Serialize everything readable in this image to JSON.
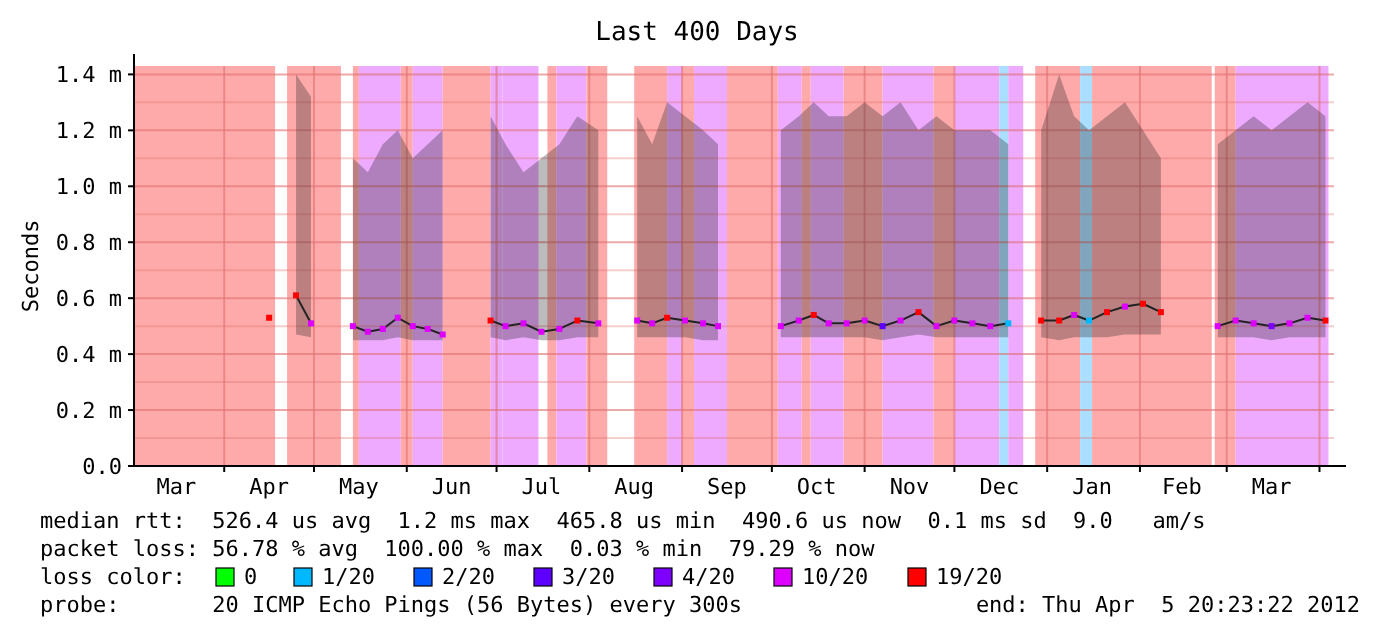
{
  "chart_data": {
    "type": "line",
    "title": "Last 400 Days",
    "ylabel": "Seconds",
    "legend": "bottom",
    "legend_title": "loss color:",
    "grid": true,
    "xlim": [
      "2011-03-01T20:23",
      "2012-04-05T20:23"
    ],
    "xticks": [
      {
        "value": "2011-03-16",
        "label": "Mar"
      },
      {
        "value": "2011-04-01",
        "label": null
      },
      {
        "value": "2011-04-16",
        "label": "Apr"
      },
      {
        "value": "2011-05-01",
        "label": null
      },
      {
        "value": "2011-05-16",
        "label": "May"
      },
      {
        "value": "2011-06-01",
        "label": null
      },
      {
        "value": "2011-06-16",
        "label": "Jun"
      },
      {
        "value": "2011-07-01",
        "label": null
      },
      {
        "value": "2011-07-16",
        "label": "Jul"
      },
      {
        "value": "2011-08-01",
        "label": null
      },
      {
        "value": "2011-08-16",
        "label": "Aug"
      },
      {
        "value": "2011-09-01",
        "label": null
      },
      {
        "value": "2011-09-16",
        "label": "Sep"
      },
      {
        "value": "2011-10-01",
        "label": null
      },
      {
        "value": "2011-10-16",
        "label": "Oct"
      },
      {
        "value": "2011-11-01",
        "label": null
      },
      {
        "value": "2011-11-16",
        "label": "Nov"
      },
      {
        "value": "2011-12-01",
        "label": null
      },
      {
        "value": "2011-12-16",
        "label": "Dec"
      },
      {
        "value": "2012-01-01",
        "label": null
      },
      {
        "value": "2012-01-16",
        "label": "Jan"
      },
      {
        "value": "2012-02-01",
        "label": null
      },
      {
        "value": "2012-02-15",
        "label": "Feb"
      },
      {
        "value": "2012-03-01",
        "label": null
      },
      {
        "value": "2012-03-16",
        "label": "Mar"
      },
      {
        "value": "2012-04-01",
        "label": null
      }
    ],
    "ylim": [
      0,
      1.43
    ],
    "yticks": [
      {
        "value": 0,
        "label": "0.0"
      },
      {
        "value": 0.1,
        "label": null
      },
      {
        "value": 0.2,
        "label": "0.2 m"
      },
      {
        "value": 0.3,
        "label": null
      },
      {
        "value": 0.4,
        "label": "0.4 m"
      },
      {
        "value": 0.5,
        "label": null
      },
      {
        "value": 0.6,
        "label": "0.6 m"
      },
      {
        "value": 0.7,
        "label": null
      },
      {
        "value": 0.8,
        "label": "0.8 m"
      },
      {
        "value": 0.9,
        "label": null
      },
      {
        "value": 1.0,
        "label": "1.0 m"
      },
      {
        "value": 1.1,
        "label": null
      },
      {
        "value": 1.2,
        "label": "1.2 m"
      },
      {
        "value": 1.3,
        "label": null
      },
      {
        "value": 1.4,
        "label": "1.4 m"
      }
    ],
    "bands": [
      {
        "axis": "x",
        "from": "2011-03-01T20:23",
        "to": "2011-04-18",
        "color": "#ffaaaa"
      },
      {
        "axis": "x",
        "from": "2011-04-22",
        "to": "2011-05-10",
        "color": "#ffaaaa"
      },
      {
        "axis": "x",
        "from": "2011-05-14",
        "to": "2011-05-16",
        "color": "#ffaaaa"
      },
      {
        "axis": "x",
        "from": "2011-05-16",
        "to": "2011-05-30",
        "color": "#eeaaff"
      },
      {
        "axis": "x",
        "from": "2011-05-30",
        "to": "2011-06-03",
        "color": "#ffaaaa"
      },
      {
        "axis": "x",
        "from": "2011-06-03",
        "to": "2011-06-13",
        "color": "#eeaaff"
      },
      {
        "axis": "x",
        "from": "2011-06-13",
        "to": "2011-06-29",
        "color": "#ffaaaa"
      },
      {
        "axis": "x",
        "from": "2011-06-29",
        "to": "2011-07-03",
        "color": "#eeaaff"
      },
      {
        "axis": "x",
        "from": "2011-07-03",
        "to": "2011-07-15",
        "color": "#eeaaff"
      },
      {
        "axis": "x",
        "from": "2011-07-18",
        "to": "2011-07-21",
        "color": "#ffaaaa"
      },
      {
        "axis": "x",
        "from": "2011-07-21",
        "to": "2011-07-31",
        "color": "#eeaaff"
      },
      {
        "axis": "x",
        "from": "2011-07-31",
        "to": "2011-08-07",
        "color": "#ffaaaa"
      },
      {
        "axis": "x",
        "from": "2011-08-16",
        "to": "2011-08-27",
        "color": "#ffaaaa"
      },
      {
        "axis": "x",
        "from": "2011-08-27",
        "to": "2011-09-01",
        "color": "#eeaaff"
      },
      {
        "axis": "x",
        "from": "2011-09-01",
        "to": "2011-09-05",
        "color": "#ffaaaa"
      },
      {
        "axis": "x",
        "from": "2011-09-05",
        "to": "2011-09-16",
        "color": "#eeaaff"
      },
      {
        "axis": "x",
        "from": "2011-09-16",
        "to": "2011-10-03",
        "color": "#ffaaaa"
      },
      {
        "axis": "x",
        "from": "2011-10-03",
        "to": "2011-10-11",
        "color": "#eeaaff"
      },
      {
        "axis": "x",
        "from": "2011-10-11",
        "to": "2011-10-14",
        "color": "#ffaaaa"
      },
      {
        "axis": "x",
        "from": "2011-10-14",
        "to": "2011-10-25",
        "color": "#eeaaff"
      },
      {
        "axis": "x",
        "from": "2011-10-25",
        "to": "2011-11-07",
        "color": "#ffaaaa"
      },
      {
        "axis": "x",
        "from": "2011-11-07",
        "to": "2011-11-24",
        "color": "#eeaaff"
      },
      {
        "axis": "x",
        "from": "2011-11-24",
        "to": "2011-12-01",
        "color": "#ffaaaa"
      },
      {
        "axis": "x",
        "from": "2011-12-01",
        "to": "2011-12-16",
        "color": "#eeaaff"
      },
      {
        "axis": "x",
        "from": "2011-12-16",
        "to": "2011-12-19",
        "color": "#aadfff"
      },
      {
        "axis": "x",
        "from": "2011-12-19",
        "to": "2011-12-24",
        "color": "#eeaaff"
      },
      {
        "axis": "x",
        "from": "2011-12-28",
        "to": "2012-01-12",
        "color": "#ffaaaa"
      },
      {
        "axis": "x",
        "from": "2012-01-12",
        "to": "2012-01-16",
        "color": "#aadfff"
      },
      {
        "axis": "x",
        "from": "2012-01-16",
        "to": "2012-02-25",
        "color": "#ffaaaa"
      },
      {
        "axis": "x",
        "from": "2012-02-26",
        "to": "2012-03-04",
        "color": "#ffaaaa"
      },
      {
        "axis": "x",
        "from": "2012-03-04",
        "to": "2012-04-04",
        "color": "#eeaaff"
      }
    ],
    "x": [
      "2011-04-16",
      "2011-04-20",
      "2011-04-25",
      "2011-04-30",
      "2011-05-05",
      "2011-05-14",
      "2011-05-19",
      "2011-05-24",
      "2011-05-29",
      "2011-06-03",
      "2011-06-08",
      "2011-06-13",
      "2011-06-20",
      "2011-06-29",
      "2011-07-04",
      "2011-07-10",
      "2011-07-16",
      "2011-07-22",
      "2011-07-28",
      "2011-08-04",
      "2011-08-10",
      "2011-08-17",
      "2011-08-22",
      "2011-08-27",
      "2011-09-02",
      "2011-09-08",
      "2011-09-13",
      "2011-09-24",
      "2011-10-04",
      "2011-10-10",
      "2011-10-15",
      "2011-10-20",
      "2011-10-26",
      "2011-11-01",
      "2011-11-07",
      "2011-11-13",
      "2011-11-19",
      "2011-11-25",
      "2011-12-01",
      "2011-12-07",
      "2011-12-13",
      "2011-12-19",
      "2011-12-24",
      "2011-12-30",
      "2012-01-05",
      "2012-01-10",
      "2012-01-15",
      "2012-01-21",
      "2012-01-27",
      "2012-02-02",
      "2012-02-08",
      "2012-02-14",
      "2012-02-27",
      "2012-03-04",
      "2012-03-10",
      "2012-03-16",
      "2012-03-22",
      "2012-03-28",
      "2012-04-03"
    ],
    "series": [
      {
        "color": "#222222",
        "values": [
          null,
          null,
          0.61,
          0.51,
          null,
          0.5,
          0.48,
          0.49,
          0.53,
          0.5,
          0.49,
          0.47,
          null,
          0.52,
          0.5,
          0.51,
          0.48,
          0.49,
          0.52,
          0.51,
          null,
          0.52,
          0.51,
          0.53,
          0.52,
          0.51,
          0.5,
          null,
          0.5,
          0.52,
          0.54,
          0.51,
          0.51,
          0.52,
          0.5,
          0.52,
          0.55,
          0.5,
          0.52,
          0.51,
          0.5,
          0.51,
          null,
          0.52,
          0.52,
          0.54,
          0.52,
          0.55,
          0.57,
          0.58,
          0.55,
          null,
          0.5,
          0.52,
          0.51,
          0.5,
          0.51,
          0.53,
          0.52
        ],
        "lower": [
          null,
          null,
          0.47,
          0.46,
          null,
          0.45,
          0.45,
          0.45,
          0.46,
          0.45,
          0.45,
          0.45,
          null,
          0.46,
          0.45,
          0.46,
          0.45,
          0.45,
          0.46,
          0.46,
          null,
          0.46,
          0.46,
          0.46,
          0.46,
          0.45,
          0.45,
          null,
          0.46,
          0.46,
          0.46,
          0.46,
          0.46,
          0.46,
          0.45,
          0.46,
          0.47,
          0.46,
          0.46,
          0.46,
          0.46,
          0.46,
          null,
          0.46,
          0.45,
          0.46,
          0.46,
          0.46,
          0.47,
          0.47,
          0.47,
          null,
          0.46,
          0.46,
          0.46,
          0.45,
          0.46,
          0.46,
          0.46
        ],
        "upper": [
          null,
          null,
          1.4,
          1.32,
          null,
          1.1,
          1.05,
          1.15,
          1.2,
          1.1,
          1.15,
          1.2,
          null,
          1.25,
          1.15,
          1.05,
          1.1,
          1.15,
          1.25,
          1.2,
          null,
          1.25,
          1.15,
          1.3,
          1.25,
          1.2,
          1.15,
          null,
          1.2,
          1.25,
          1.3,
          1.25,
          1.25,
          1.3,
          1.25,
          1.3,
          1.2,
          1.25,
          1.2,
          1.2,
          1.2,
          1.15,
          null,
          1.2,
          1.4,
          1.25,
          1.2,
          1.25,
          1.3,
          1.2,
          1.1,
          null,
          1.15,
          1.2,
          1.25,
          1.2,
          1.25,
          1.3,
          1.25
        ]
      },
      {
        "name": "0",
        "type": "scatter",
        "marker": "square",
        "color": "#00ff00",
        "values": [
          null,
          null,
          null,
          null,
          null,
          null,
          null,
          null,
          null,
          null,
          null,
          null,
          null,
          null,
          null,
          null,
          null,
          null,
          null,
          null,
          null,
          null,
          null,
          null,
          null,
          null,
          null,
          null,
          null,
          null,
          null,
          null,
          null,
          null,
          null,
          null,
          null,
          null,
          null,
          null,
          null,
          null,
          null,
          null,
          null,
          null,
          null,
          null,
          null,
          null,
          null,
          null,
          null,
          null,
          null,
          null,
          null,
          null,
          null
        ]
      },
      {
        "name": "1/20",
        "type": "scatter",
        "marker": "square",
        "color": "#00b8ff",
        "values": [
          null,
          null,
          null,
          null,
          null,
          null,
          null,
          null,
          null,
          null,
          null,
          null,
          null,
          null,
          null,
          null,
          null,
          null,
          null,
          null,
          null,
          null,
          null,
          null,
          null,
          null,
          null,
          null,
          null,
          null,
          null,
          null,
          null,
          null,
          null,
          null,
          null,
          null,
          null,
          null,
          null,
          0.51,
          null,
          null,
          null,
          null,
          0.52,
          null,
          null,
          null,
          null,
          null,
          null,
          null,
          null,
          null,
          null,
          null,
          null
        ]
      },
      {
        "name": "2/20",
        "type": "scatter",
        "marker": "square",
        "color": "#0059ff",
        "values": [
          null,
          null,
          null,
          null,
          null,
          null,
          null,
          null,
          null,
          null,
          null,
          null,
          null,
          null,
          null,
          null,
          null,
          null,
          null,
          null,
          null,
          null,
          null,
          null,
          null,
          null,
          null,
          null,
          null,
          null,
          null,
          null,
          null,
          null,
          null,
          null,
          null,
          null,
          null,
          null,
          null,
          null,
          null,
          null,
          null,
          null,
          null,
          null,
          null,
          null,
          null,
          null,
          null,
          null,
          null,
          null,
          null,
          null,
          null
        ]
      },
      {
        "name": "3/20",
        "type": "scatter",
        "marker": "square",
        "color": "#5e00ff",
        "values": [
          null,
          null,
          null,
          null,
          null,
          null,
          null,
          null,
          null,
          null,
          null,
          null,
          null,
          null,
          null,
          null,
          null,
          null,
          null,
          null,
          null,
          null,
          null,
          null,
          null,
          null,
          null,
          null,
          null,
          null,
          null,
          null,
          null,
          null,
          0.5,
          null,
          null,
          null,
          null,
          null,
          null,
          null,
          null,
          null,
          null,
          null,
          null,
          null,
          null,
          null,
          null,
          null,
          null,
          null,
          null,
          null,
          null,
          null,
          null
        ]
      },
      {
        "name": "4/20",
        "type": "scatter",
        "marker": "square",
        "color": "#7e00ff",
        "values": [
          null,
          null,
          null,
          null,
          null,
          null,
          null,
          null,
          null,
          null,
          null,
          null,
          null,
          null,
          null,
          null,
          null,
          null,
          null,
          null,
          null,
          null,
          null,
          null,
          null,
          null,
          null,
          null,
          null,
          null,
          null,
          null,
          null,
          null,
          null,
          null,
          null,
          null,
          null,
          null,
          null,
          null,
          null,
          null,
          null,
          null,
          null,
          null,
          null,
          null,
          null,
          null,
          null,
          null,
          null,
          0.5,
          null,
          null,
          null
        ]
      },
      {
        "name": "10/20",
        "type": "scatter",
        "marker": "square",
        "color": "#dd00ff",
        "values": [
          null,
          null,
          null,
          0.51,
          null,
          0.5,
          0.48,
          0.49,
          0.53,
          0.5,
          0.49,
          0.47,
          null,
          null,
          0.5,
          0.51,
          0.48,
          0.49,
          null,
          0.51,
          null,
          0.52,
          0.51,
          null,
          0.52,
          0.51,
          0.5,
          null,
          0.5,
          0.52,
          null,
          0.51,
          0.51,
          0.52,
          null,
          0.52,
          null,
          0.5,
          0.52,
          0.51,
          0.5,
          null,
          null,
          null,
          null,
          0.54,
          null,
          null,
          0.57,
          null,
          null,
          null,
          0.5,
          0.52,
          0.51,
          null,
          0.51,
          0.53,
          null
        ]
      },
      {
        "name": "19/20",
        "type": "scatter",
        "marker": "square",
        "color": "#ff0000",
        "values": [
          0.53,
          null,
          0.61,
          null,
          null,
          null,
          null,
          null,
          null,
          null,
          null,
          null,
          null,
          0.52,
          null,
          null,
          null,
          null,
          0.52,
          null,
          null,
          null,
          null,
          0.53,
          null,
          null,
          null,
          null,
          null,
          null,
          0.54,
          null,
          null,
          null,
          null,
          null,
          0.55,
          null,
          null,
          null,
          null,
          null,
          null,
          0.52,
          0.52,
          null,
          null,
          0.55,
          null,
          0.58,
          0.55,
          null,
          null,
          null,
          null,
          null,
          null,
          null,
          0.52
        ]
      }
    ],
    "annotations": [
      "median rtt:  526.4 us avg  1.2 ms max  465.8 us min  490.6 us now  0.1 ms sd  9.0   am/s",
      "packet loss: 56.78 % avg  100.00 % max  0.03 % min  79.29 % now",
      "probe:       20 ICMP Echo Pings (56 Bytes) every 300s",
      "end: Thu Apr  5 20:23:22 2012"
    ]
  }
}
